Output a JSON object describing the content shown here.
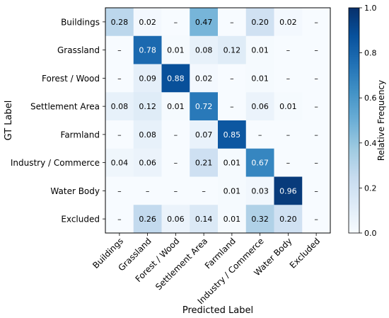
{
  "chart_data": {
    "type": "heatmap",
    "title": "",
    "xlabel": "Predicted Label",
    "ylabel": "GT Label",
    "x_categories": [
      "Buildings",
      "Grassland",
      "Forest / Wood",
      "Settlement Area",
      "Farmland",
      "Industry / Commerce",
      "Water Body",
      "Excluded"
    ],
    "y_categories": [
      "Buildings",
      "Grassland",
      "Forest / Wood",
      "Settlement Area",
      "Farmland",
      "Industry / Commerce",
      "Water Body",
      "Excluded"
    ],
    "values": [
      [
        0.28,
        0.02,
        null,
        0.47,
        null,
        0.2,
        0.02,
        null
      ],
      [
        null,
        0.78,
        0.01,
        0.08,
        0.12,
        0.01,
        null,
        null
      ],
      [
        null,
        0.09,
        0.88,
        0.02,
        null,
        0.01,
        null,
        null
      ],
      [
        0.08,
        0.12,
        0.01,
        0.72,
        null,
        0.06,
        0.01,
        null
      ],
      [
        null,
        0.08,
        null,
        0.07,
        0.85,
        null,
        null,
        null
      ],
      [
        0.04,
        0.06,
        null,
        0.21,
        0.01,
        0.67,
        null,
        null
      ],
      [
        null,
        null,
        null,
        null,
        0.01,
        0.03,
        0.96,
        null
      ],
      [
        null,
        0.26,
        0.06,
        0.14,
        0.01,
        0.32,
        0.2,
        null
      ]
    ],
    "missing_label": "–",
    "colorbar": {
      "label": "Relative Frequency",
      "range": [
        0.0,
        1.0
      ],
      "ticks": [
        "0.0",
        "0.2",
        "0.4",
        "0.6",
        "0.8",
        "1.0"
      ],
      "colormap": "Blues"
    },
    "grid": false
  }
}
